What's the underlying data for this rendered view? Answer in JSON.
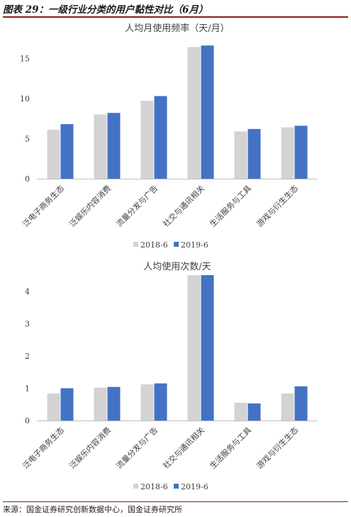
{
  "figure_title": "图表 29：一级行业分类的用户黏性对比（6月）",
  "source_note": "来源：国金证券研究创新数据中心，国金证券研究所",
  "colors": {
    "series_2018": "#d3d3d3",
    "series_2019": "#4472c4",
    "axis": "#bfbfbf",
    "text": "#404040"
  },
  "chart_data": [
    {
      "type": "bar",
      "title": "人均月使用频率（天/月）",
      "categories": [
        "泛电子商务生态",
        "泛娱乐内容消费",
        "流量分发与广告",
        "社交与通讯相关",
        "生活服务与工具",
        "游戏与衍生生态"
      ],
      "series": [
        {
          "name": "2018-6",
          "values": [
            6.1,
            8.0,
            9.7,
            16.4,
            5.9,
            6.4
          ]
        },
        {
          "name": "2019-6",
          "values": [
            6.8,
            8.2,
            10.3,
            16.6,
            6.2,
            6.6
          ]
        }
      ],
      "ylim": [
        0,
        17.5
      ],
      "yticks": [
        0,
        5,
        10,
        15
      ],
      "grid": false,
      "legend": "bottom"
    },
    {
      "type": "bar",
      "title": "人均使用次数/天",
      "categories": [
        "泛电子商务生态",
        "泛娱乐内容消费",
        "流量分发与广告",
        "社交与通讯相关",
        "生活服务与工具",
        "游戏与衍生生态"
      ],
      "series": [
        {
          "name": "2018-6",
          "values": [
            0.84,
            1.02,
            1.12,
            4.5,
            0.55,
            0.84
          ]
        },
        {
          "name": "2019-6",
          "values": [
            1.0,
            1.04,
            1.15,
            4.5,
            0.53,
            1.06
          ]
        }
      ],
      "ylim": [
        0,
        4.5
      ],
      "yticks": [
        0,
        1,
        2,
        3,
        4
      ],
      "grid": false,
      "legend": "bottom"
    }
  ]
}
